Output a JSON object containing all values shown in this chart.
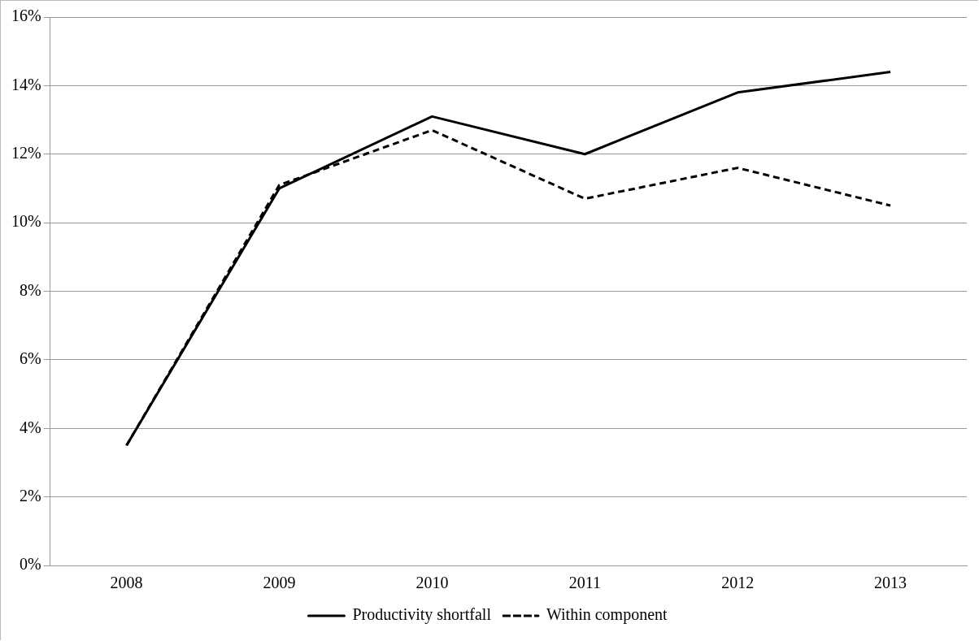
{
  "chart_data": {
    "type": "line",
    "categories": [
      "2008",
      "2009",
      "2010",
      "2011",
      "2012",
      "2013"
    ],
    "series": [
      {
        "name": "Productivity shortfall",
        "color": "#000000",
        "line_style": "solid",
        "values": [
          3.5,
          11.0,
          13.1,
          12.0,
          13.8,
          14.4
        ]
      },
      {
        "name": "Within component",
        "color": "#000000",
        "line_style": "dashed",
        "values": [
          3.5,
          11.1,
          12.7,
          10.7,
          11.6,
          10.5
        ]
      }
    ],
    "ylim": [
      0,
      16
    ],
    "yticks": [
      {
        "value": 0,
        "label": "0%"
      },
      {
        "value": 2,
        "label": "2%"
      },
      {
        "value": 4,
        "label": "4%"
      },
      {
        "value": 6,
        "label": "6%"
      },
      {
        "value": 8,
        "label": "8%"
      },
      {
        "value": 10,
        "label": "10%"
      },
      {
        "value": 12,
        "label": "12%"
      },
      {
        "value": 14,
        "label": "14%"
      },
      {
        "value": 16,
        "label": "16%"
      }
    ],
    "grid": "y",
    "legend": "bottom",
    "marker": "none"
  }
}
